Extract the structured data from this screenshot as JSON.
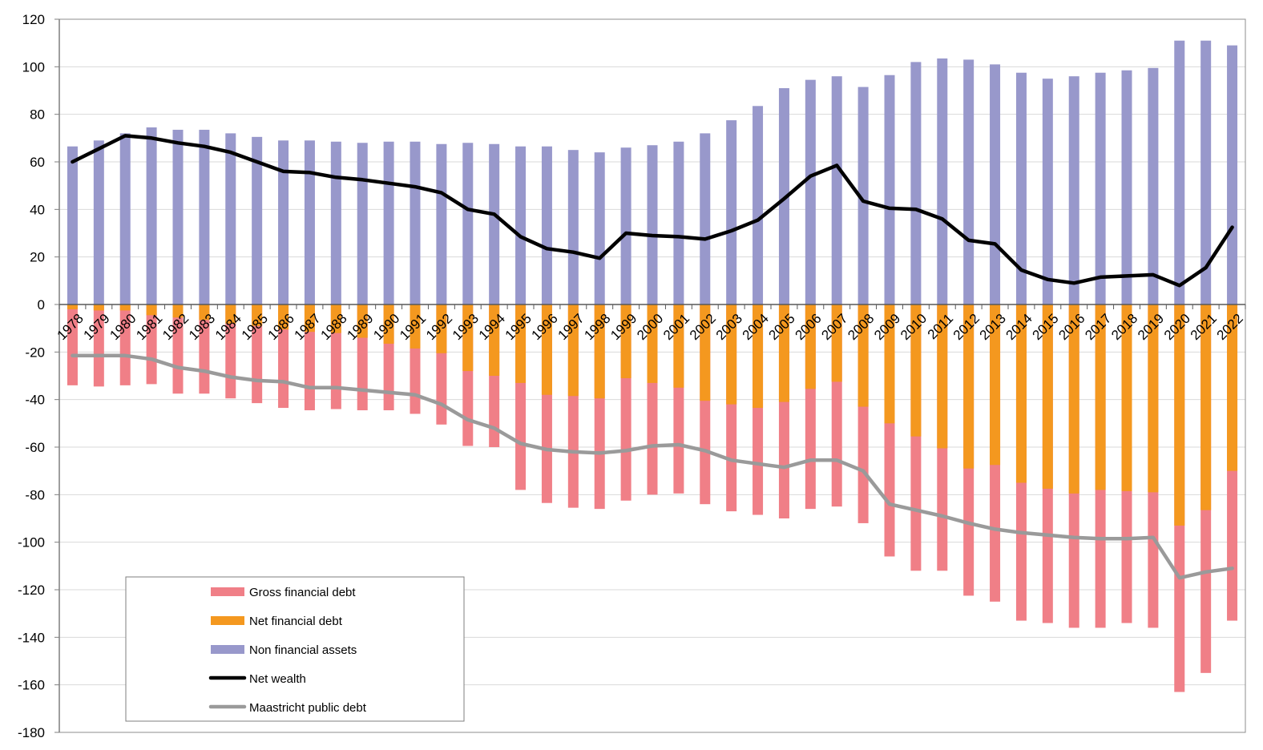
{
  "chart_data": {
    "type": "bar",
    "title": "",
    "xlabel": "",
    "ylabel": "",
    "ylim": [
      -180,
      120
    ],
    "yticks": [
      120,
      100,
      80,
      60,
      40,
      20,
      0,
      -20,
      -40,
      -60,
      -80,
      -100,
      -120,
      -140,
      -160,
      -180
    ],
    "grid": true,
    "legend_position": "bottom-left",
    "categories": [
      "1978",
      "1979",
      "1980",
      "1981",
      "1982",
      "1983",
      "1984",
      "1985",
      "1986",
      "1987",
      "1988",
      "1989",
      "1990",
      "1991",
      "1992",
      "1993",
      "1994",
      "1995",
      "1996",
      "1997",
      "1998",
      "1999",
      "2000",
      "2001",
      "2002",
      "2003",
      "2004",
      "2005",
      "2006",
      "2007",
      "2008",
      "2009",
      "2010",
      "2011",
      "2012",
      "2013",
      "2014",
      "2015",
      "2016",
      "2017",
      "2018",
      "2019",
      "2020",
      "2021",
      "2022"
    ],
    "series": [
      {
        "name": "Gross financial debt",
        "kind": "bar",
        "color": "#F07F87",
        "values": [
          -34,
          -34.5,
          -34,
          -33.5,
          -37.5,
          -37.5,
          -39.5,
          -41.5,
          -43.5,
          -44.5,
          -44,
          -44.5,
          -44.5,
          -46,
          -50.5,
          -59.5,
          -60,
          -78,
          -83.5,
          -85.5,
          -86,
          -82.5,
          -80,
          -79.5,
          -84,
          -87,
          -88.5,
          -90,
          -86,
          -85,
          -92,
          -106,
          -112,
          -112,
          -122.5,
          -125,
          -133,
          -134,
          -136,
          -136,
          -134,
          -136,
          -163,
          -155,
          -133
        ]
      },
      {
        "name": "Net financial debt",
        "kind": "bar",
        "color": "#F4981F",
        "values": [
          -2,
          -2.5,
          -2.5,
          -4.5,
          -5.5,
          -6.5,
          -8,
          -9,
          -10.5,
          -11.5,
          -12,
          -14,
          -16.5,
          -18.5,
          -20.5,
          -28,
          -30,
          -33,
          -38,
          -38.5,
          -39.5,
          -31,
          -33,
          -35,
          -40.5,
          -42,
          -43.5,
          -41,
          -35.5,
          -32.5,
          -43,
          -50,
          -55.5,
          -60.5,
          -69,
          -67.5,
          -75,
          -77.5,
          -79.5,
          -78,
          -78.5,
          -79,
          -93,
          -86.5,
          -70
        ]
      },
      {
        "name": "Non financial assets",
        "kind": "bar",
        "color": "#9898CB",
        "values": [
          66.5,
          69,
          72,
          74.5,
          73.5,
          73.5,
          72,
          70.5,
          69,
          69,
          68.5,
          68,
          68.5,
          68.5,
          67.5,
          68,
          67.5,
          66.5,
          66.5,
          65,
          64,
          66,
          67,
          68.5,
          72,
          77.5,
          83.5,
          91,
          94.5,
          96,
          91.5,
          96.5,
          102,
          103.5,
          103,
          101,
          97.5,
          95,
          96,
          97.5,
          98.5,
          99.5,
          111,
          111,
          109
        ]
      },
      {
        "name": "Net wealth",
        "kind": "line",
        "color": "#000000",
        "values": [
          60,
          65.5,
          71,
          70,
          68,
          66.5,
          64,
          60,
          56,
          55.5,
          53.5,
          52.5,
          51,
          49.5,
          47,
          40,
          38,
          28.5,
          23.5,
          22,
          19.5,
          30,
          29,
          28.5,
          27.5,
          31,
          35.5,
          44.5,
          54,
          58.5,
          43.5,
          40.5,
          40,
          36,
          27,
          25.5,
          14.5,
          10.5,
          9,
          11.5,
          12,
          12.5,
          8,
          15.5,
          32.5
        ]
      },
      {
        "name": "Maastricht public debt",
        "kind": "line",
        "color": "#9A9A9A",
        "values": [
          -21.5,
          -21.5,
          -21.5,
          -23,
          -26.5,
          -28,
          -30.5,
          -32,
          -32.5,
          -35,
          -35,
          -36,
          -37,
          -38,
          -42,
          -48.5,
          -52,
          -58.5,
          -61,
          -62,
          -62.5,
          -61.5,
          -59.5,
          -59,
          -61.5,
          -65.5,
          -67,
          -68.5,
          -65.5,
          -65.5,
          -70,
          -84,
          -86.5,
          -89,
          -92,
          -94.5,
          -96,
          -97,
          -98,
          -98.5,
          -98.5,
          -98,
          -115,
          -112.5,
          -111
        ]
      }
    ]
  }
}
